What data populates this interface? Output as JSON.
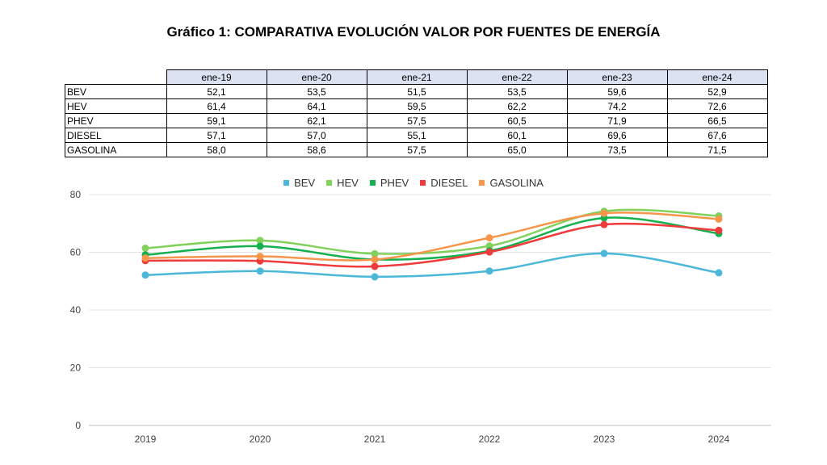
{
  "title": "Gráfico 1: COMPARATIVA EVOLUCIÓN VALOR POR FUENTES DE ENERGÍA",
  "table": {
    "headers": [
      "ene-19",
      "ene-20",
      "ene-21",
      "ene-22",
      "ene-23",
      "ene-24"
    ],
    "rows": [
      {
        "label": "BEV",
        "values": [
          "52,1",
          "53,5",
          "51,5",
          "53,5",
          "59,6",
          "52,9"
        ]
      },
      {
        "label": "HEV",
        "values": [
          "61,4",
          "64,1",
          "59,5",
          "62,2",
          "74,2",
          "72,6"
        ]
      },
      {
        "label": "PHEV",
        "values": [
          "59,1",
          "62,1",
          "57,5",
          "60,5",
          "71,9",
          "66,5"
        ]
      },
      {
        "label": "DIESEL",
        "values": [
          "57,1",
          "57,0",
          "55,1",
          "60,1",
          "69,6",
          "67,6"
        ]
      },
      {
        "label": "GASOLINA",
        "values": [
          "58,0",
          "58,6",
          "57,5",
          "65,0",
          "73,5",
          "71,5"
        ]
      }
    ]
  },
  "chart_data": {
    "type": "line",
    "x": [
      "2019",
      "2020",
      "2021",
      "2022",
      "2023",
      "2024"
    ],
    "ylim": [
      0,
      80
    ],
    "yticks": [
      0,
      20,
      40,
      60,
      80
    ],
    "grid": true,
    "legend": "top",
    "smooth": true,
    "series": [
      {
        "name": "BEV",
        "color": "#4bb7d9",
        "values": [
          52.1,
          53.5,
          51.5,
          53.5,
          59.6,
          52.9
        ]
      },
      {
        "name": "HEV",
        "color": "#82d15c",
        "values": [
          61.4,
          64.1,
          59.5,
          62.2,
          74.2,
          72.6
        ]
      },
      {
        "name": "PHEV",
        "color": "#16b04f",
        "values": [
          59.1,
          62.1,
          57.5,
          60.5,
          71.9,
          66.5
        ]
      },
      {
        "name": "DIESEL",
        "color": "#ef3b3b",
        "values": [
          57.1,
          57.0,
          55.1,
          60.1,
          69.6,
          67.6
        ]
      },
      {
        "name": "GASOLINA",
        "color": "#f7954a",
        "values": [
          58.0,
          58.6,
          57.5,
          65.0,
          73.5,
          71.5
        ]
      }
    ]
  }
}
